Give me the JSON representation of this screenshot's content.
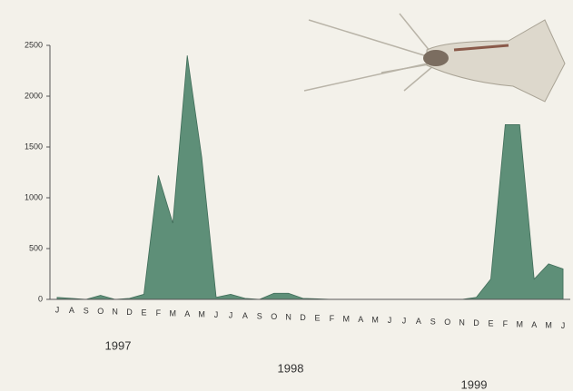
{
  "chart_data": {
    "type": "area",
    "categories": [
      "J",
      "A",
      "S",
      "O",
      "N",
      "D",
      "E",
      "F",
      "M",
      "A",
      "M",
      "J",
      "J",
      "A",
      "S",
      "O",
      "N",
      "D",
      "E",
      "F",
      "M",
      "A",
      "M",
      "J",
      "J",
      "A",
      "S",
      "O",
      "N",
      "D",
      "E",
      "F",
      "M",
      "A",
      "M",
      "J"
    ],
    "values": [
      20,
      10,
      0,
      40,
      0,
      10,
      50,
      1220,
      750,
      2400,
      1400,
      20,
      50,
      10,
      0,
      60,
      60,
      10,
      5,
      0,
      0,
      0,
      0,
      0,
      0,
      0,
      0,
      0,
      0,
      20,
      200,
      1720,
      1720,
      200,
      350,
      300
    ],
    "color": "#5e8f78",
    "ylim": [
      0,
      2500
    ],
    "yticks": [
      0,
      500,
      1000,
      1500,
      2000,
      2500
    ],
    "annotations": [
      "1997",
      "1998",
      "1999"
    ]
  }
}
